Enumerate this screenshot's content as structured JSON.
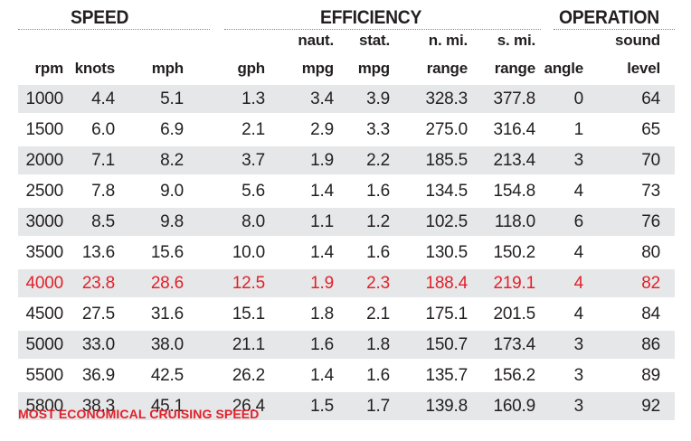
{
  "groups": {
    "speed": "SPEED",
    "efficiency": "EFFICIENCY",
    "operation": "OPERATION"
  },
  "headers": [
    {
      "key": "rpm",
      "line1": "",
      "line2": "rpm"
    },
    {
      "key": "knots",
      "line1": "",
      "line2": "knots"
    },
    {
      "key": "mph",
      "line1": "",
      "line2": "mph"
    },
    {
      "key": "gph",
      "line1": "",
      "line2": "gph"
    },
    {
      "key": "naut_mpg",
      "line1": "naut.",
      "line2": "mpg"
    },
    {
      "key": "stat_mpg",
      "line1": "stat.",
      "line2": "mpg"
    },
    {
      "key": "nmi_range",
      "line1": "n. mi.",
      "line2": "range"
    },
    {
      "key": "smi_range",
      "line1": "s. mi.",
      "line2": "range"
    },
    {
      "key": "angle",
      "line1": "",
      "line2": "angle"
    },
    {
      "key": "sound",
      "line1": "sound",
      "line2": "level"
    }
  ],
  "rows": [
    [
      "1000",
      "4.4",
      "5.1",
      "1.3",
      "3.4",
      "3.9",
      "328.3",
      "377.8",
      "0",
      "64"
    ],
    [
      "1500",
      "6.0",
      "6.9",
      "2.1",
      "2.9",
      "3.3",
      "275.0",
      "316.4",
      "1",
      "65"
    ],
    [
      "2000",
      "7.1",
      "8.2",
      "3.7",
      "1.9",
      "2.2",
      "185.5",
      "213.4",
      "3",
      "70"
    ],
    [
      "2500",
      "7.8",
      "9.0",
      "5.6",
      "1.4",
      "1.6",
      "134.5",
      "154.8",
      "4",
      "73"
    ],
    [
      "3000",
      "8.5",
      "9.8",
      "8.0",
      "1.1",
      "1.2",
      "102.5",
      "118.0",
      "6",
      "76"
    ],
    [
      "3500",
      "13.6",
      "15.6",
      "10.0",
      "1.4",
      "1.6",
      "130.5",
      "150.2",
      "4",
      "80"
    ],
    [
      "4000",
      "23.8",
      "28.6",
      "12.5",
      "1.9",
      "2.3",
      "188.4",
      "219.1",
      "4",
      "82"
    ],
    [
      "4500",
      "27.5",
      "31.6",
      "15.1",
      "1.8",
      "2.1",
      "175.1",
      "201.5",
      "4",
      "84"
    ],
    [
      "5000",
      "33.0",
      "38.0",
      "21.1",
      "1.6",
      "1.8",
      "150.7",
      "173.4",
      "3",
      "86"
    ],
    [
      "5500",
      "36.9",
      "42.5",
      "26.2",
      "1.4",
      "1.6",
      "135.7",
      "156.2",
      "3",
      "89"
    ],
    [
      "5800",
      "38.3",
      "45.1",
      "26.4",
      "1.5",
      "1.7",
      "139.8",
      "160.9",
      "3",
      "92"
    ]
  ],
  "highlight_row_index": 6,
  "highlight_color": "#e2212b",
  "stripe_color": "#e6e7e8",
  "footnote": "MOST ECONOMICAL CRUISING SPEED"
}
